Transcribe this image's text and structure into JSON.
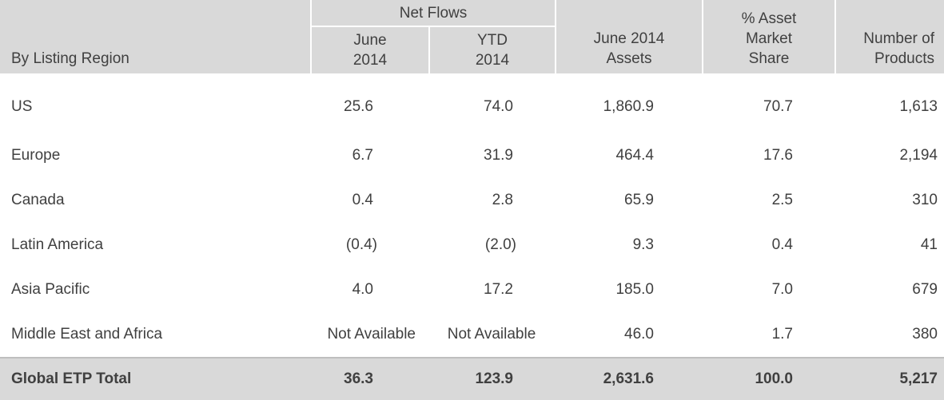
{
  "header": {
    "region_label": "By Listing Region",
    "net_flows_label": "Net Flows",
    "june_2014_line1": "June",
    "june_2014_line2": "2014",
    "ytd_2014_line1": "YTD",
    "ytd_2014_line2": "2014",
    "assets_line1": "June 2014",
    "assets_line2": "Assets",
    "share_line1": "% Asset",
    "share_line2": "Market",
    "share_line3": "Share",
    "products_line1": "Number of",
    "products_line2": "Products"
  },
  "rows": [
    {
      "region": "US",
      "june": "25.6",
      "ytd": "74.0",
      "assets": "1,860.9",
      "share": "70.7",
      "products": "1,613"
    },
    {
      "region": "Europe",
      "june": "6.7",
      "ytd": "31.9",
      "assets": "464.4",
      "share": "17.6",
      "products": "2,194"
    },
    {
      "region": "Canada",
      "june": "0.4",
      "ytd": "2.8",
      "assets": "65.9",
      "share": "2.5",
      "products": "310"
    },
    {
      "region": "Latin America",
      "june": "(0.4)",
      "ytd": "(2.0)",
      "assets": "9.3",
      "share": "0.4",
      "products": "41"
    },
    {
      "region": "Asia Pacific",
      "june": "4.0",
      "ytd": "17.2",
      "assets": "185.0",
      "share": "7.0",
      "products": "679"
    },
    {
      "region": "Middle East and Africa",
      "june": "Not Available",
      "ytd": "Not Available",
      "assets": "46.0",
      "share": "1.7",
      "products": "380"
    }
  ],
  "total": {
    "region": "Global ETP Total",
    "june": "36.3",
    "ytd": "123.9",
    "assets": "2,631.6",
    "share": "100.0",
    "products": "5,217"
  },
  "colors": {
    "header_background": "#d9d9d9",
    "text": "#404040"
  }
}
